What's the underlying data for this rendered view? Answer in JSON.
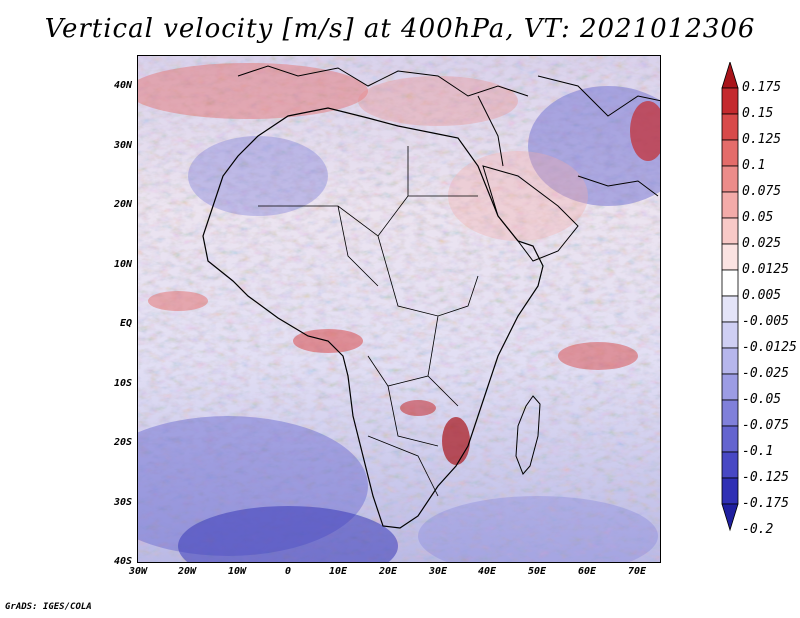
{
  "title": "Vertical velocity [m/s] at 400hPa, VT: 2021012306",
  "credit": "GrADS: IGES/COLA",
  "y_axis_labels": [
    "40N",
    "30N",
    "20N",
    "10N",
    "EQ",
    "10S",
    "20S",
    "30S",
    "40S"
  ],
  "x_axis_labels": [
    "30W",
    "20W",
    "10W",
    "0",
    "10E",
    "20E",
    "30E",
    "40E",
    "50E",
    "60E",
    "70E"
  ],
  "colorbar": {
    "labels": [
      "0.175",
      "0.15",
      "0.125",
      "0.1",
      "0.075",
      "0.05",
      "0.025",
      "0.0125",
      "0.005",
      "-0.005",
      "-0.0125",
      "-0.025",
      "-0.05",
      "-0.075",
      "-0.1",
      "-0.125",
      "-0.175",
      "-0.2"
    ],
    "colors": [
      "#a8141a",
      "#c42a2e",
      "#d84a4a",
      "#e46c6a",
      "#ec8c8a",
      "#f3aba9",
      "#f8c9c7",
      "#fbe3e2",
      "#ffffff",
      "#e4e4f8",
      "#cfcff3",
      "#b6b6ec",
      "#9c9ce4",
      "#8080da",
      "#6464cf",
      "#4848c4",
      "#3030b5",
      "#2020a0"
    ]
  }
}
